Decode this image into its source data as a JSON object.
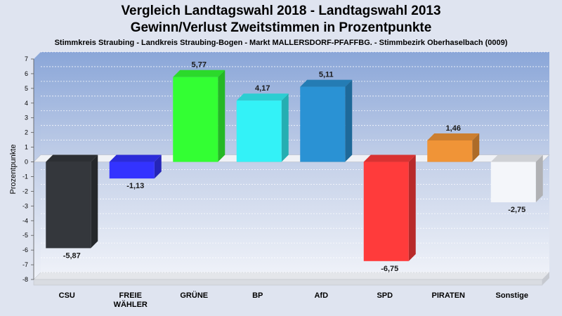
{
  "header": {
    "title_line1": "Vergleich Landtagswahl 2018 - Landtagswahl 2013",
    "title_line2": "Gewinn/Verlust Zweitstimmen in Prozentpunkte",
    "subtitle": "Stimmkreis Straubing - Landkreis Straubing-Bogen - Markt MALLERSDORF-PFAFFBG. - Stimmbezirk Oberhaselbach (0009)"
  },
  "chart_data": {
    "type": "bar",
    "title": "Vergleich Landtagswahl 2018 - Landtagswahl 2013 / Gewinn/Verlust Zweitstimmen in Prozentpunkte",
    "subtitle": "Stimmkreis Straubing - Landkreis Straubing-Bogen - Markt MALLERSDORF-PFAFFBG. - Stimmbezirk Oberhaselbach (0009)",
    "xlabel": "",
    "ylabel": "Prozentpunkte",
    "ylim": [
      -8,
      7
    ],
    "yticks": [
      7,
      6,
      5,
      4,
      3,
      2,
      1,
      0,
      -1,
      -2,
      -3,
      -4,
      -5,
      -6,
      -7,
      -8
    ],
    "grid": true,
    "categories": [
      "CSU",
      "FREIE\nWÄHLER",
      "GRÜNE",
      "BP",
      "AfD",
      "SPD",
      "PIRATEN",
      "Sonstige"
    ],
    "category_lines": [
      [
        "CSU"
      ],
      [
        "FREIE",
        "WÄHLER"
      ],
      [
        "GRÜNE"
      ],
      [
        "BP"
      ],
      [
        "AfD"
      ],
      [
        "SPD"
      ],
      [
        "PIRATEN"
      ],
      [
        "Sonstige"
      ]
    ],
    "values": [
      -5.87,
      -1.13,
      5.77,
      4.17,
      5.11,
      -6.75,
      1.46,
      -2.75
    ],
    "value_labels": [
      "-5,87",
      "-1,13",
      "5,77",
      "4,17",
      "5,11",
      "-6,75",
      "1,46",
      "-2,75"
    ],
    "colors": [
      "#34373c",
      "#3333ff",
      "#33ff33",
      "#33f2f7",
      "#2a92d4",
      "#ff3b3b",
      "#f09437",
      "#f4f6fa"
    ]
  }
}
